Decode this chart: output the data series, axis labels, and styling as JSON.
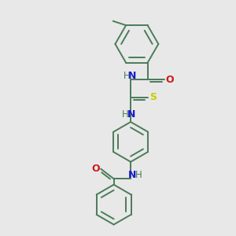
{
  "bg_color": "#e8e8e8",
  "bond_color": "#4a7c5a",
  "atom_colors": {
    "N": "#1a1acc",
    "O": "#cc1a1a",
    "S": "#cccc00",
    "H": "#4a7c5a",
    "C": "#4a7c5a"
  },
  "lw": 1.4,
  "fs": 9.0,
  "xlim": [
    0,
    10
  ],
  "ylim": [
    0,
    10
  ]
}
